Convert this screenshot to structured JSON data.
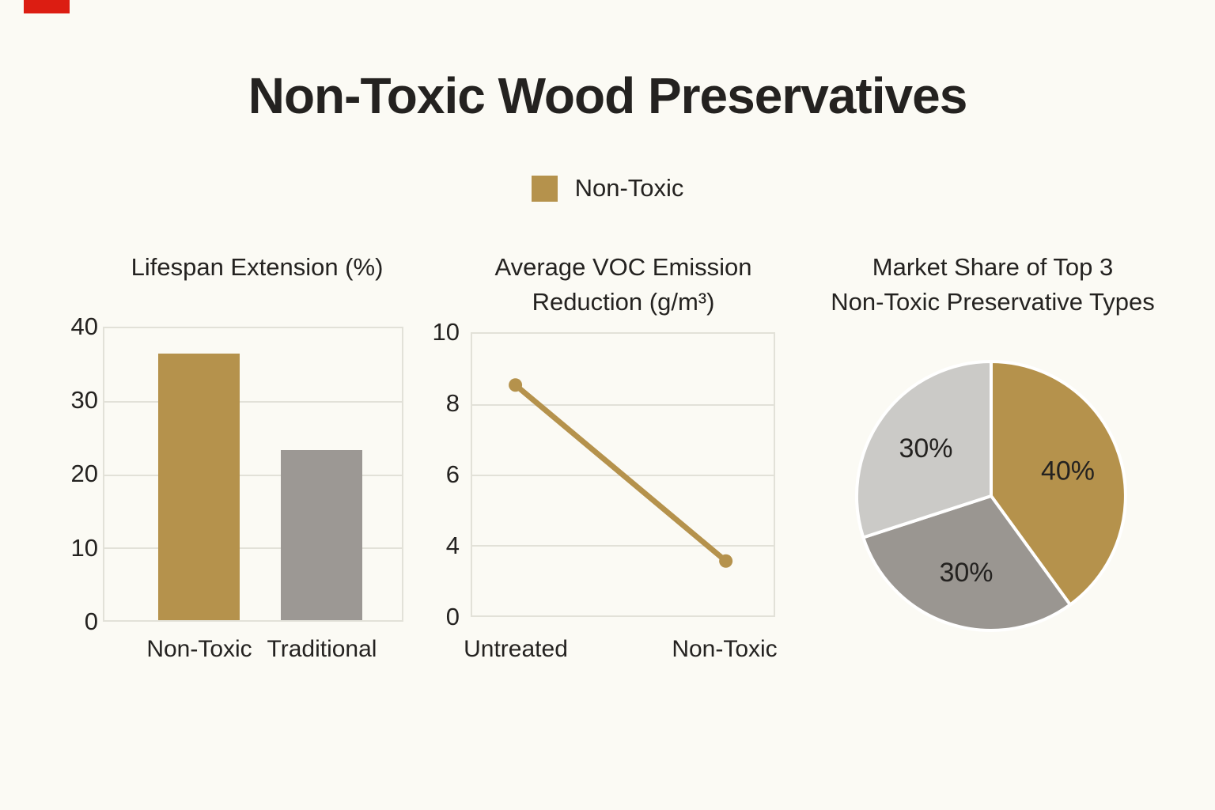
{
  "page": {
    "title": "Non-Toxic Wood Preservatives",
    "background": "#FBFAF4",
    "text_color": "#242220"
  },
  "annotation_marker": {
    "color": "#DC1D12"
  },
  "legend": {
    "label": "Non-Toxic",
    "swatch_color": "#B5924C"
  },
  "palette": {
    "gold": "#B5924C",
    "gray": "#9C9894",
    "light_gray": "#CBCAC7",
    "grid": "#E2E1D8"
  },
  "chart_data": [
    {
      "type": "bar",
      "title": "Lifespan Extension (%)",
      "title_lines": [
        "Lifespan Extension (%)"
      ],
      "categories": [
        "Non-Toxic",
        "Traditional"
      ],
      "values": [
        36.5,
        23.3
      ],
      "bar_colors": [
        "#B5924C",
        "#9C9894"
      ],
      "yticks": [
        40,
        30,
        20,
        10,
        0
      ],
      "ylim": [
        0,
        40
      ],
      "grid": true,
      "legend_series": "Non-Toxic"
    },
    {
      "type": "line",
      "title": "Average VOC Emission Reduction (g/m³)",
      "title_lines": [
        "Average VOC Emission",
        "Reduction (g/m³)"
      ],
      "categories": [
        "Untreated",
        "Non-Toxic"
      ],
      "values": [
        8.5,
        3.0
      ],
      "yticks": [
        10,
        8,
        6,
        4,
        0
      ],
      "ylim": [
        0,
        10
      ],
      "line_color": "#B5924C",
      "marker": "circle",
      "grid": true
    },
    {
      "type": "pie",
      "title": "Market Share of Top 3 Non-Toxic Preservative Types",
      "title_lines": [
        "Market Share of Top 3",
        "Non-Toxic Preservative Types"
      ],
      "labels": [
        "40%",
        "30%",
        "30%"
      ],
      "values": [
        40,
        30,
        30
      ],
      "colors": [
        "#B5924C",
        "#9A9691",
        "#CBCAC7"
      ],
      "start_angle": "top",
      "direction": "clockwise",
      "separator_color": "#FFFFFF"
    }
  ]
}
